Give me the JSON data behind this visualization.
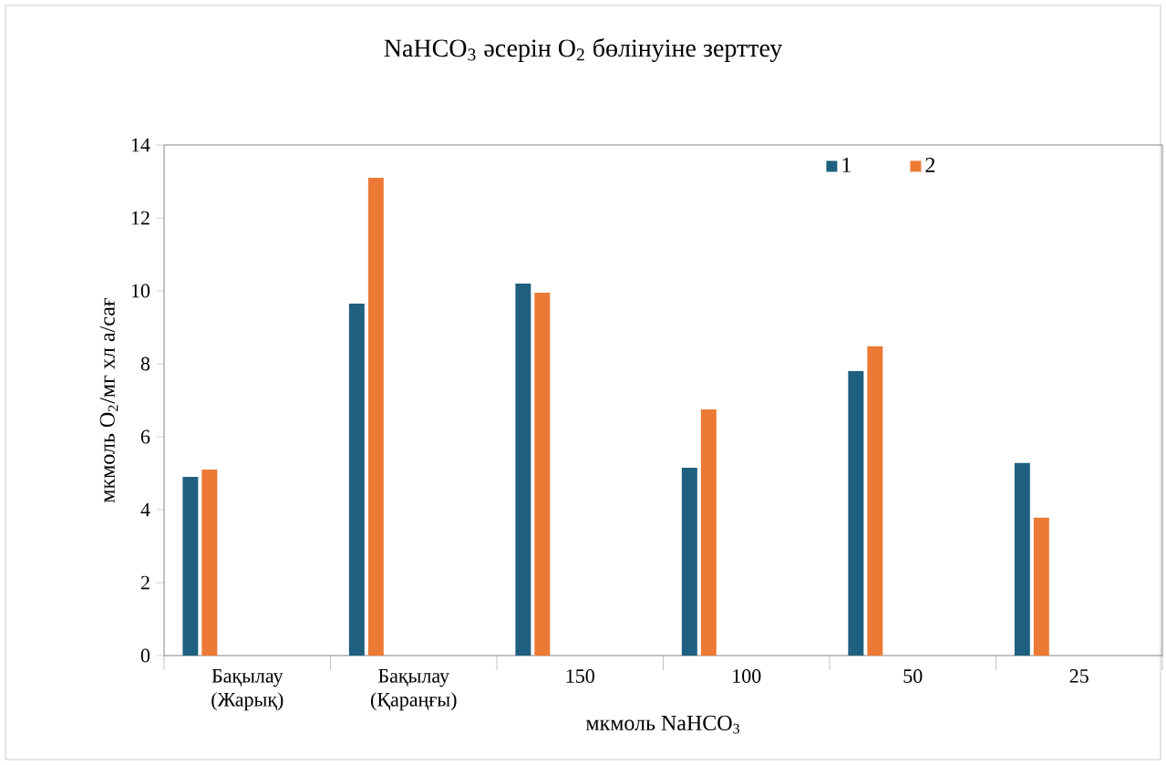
{
  "chart_data": {
    "type": "bar",
    "title": "NaHCO$_{3}$ әсерін O$_{2}$ бөлінуіне зерттеу",
    "xlabel": "мкмоль NaHCO$_{3}$",
    "ylabel": "мкмоль O$_{2}$/мг хл а/сағ",
    "categories": [
      "Бақылау (Жарық)",
      "Бақылау (Қараңғы)",
      "150",
      "100",
      "50",
      "25"
    ],
    "series": [
      {
        "name": "1",
        "color": "#1f5f7f",
        "values": [
          4.9,
          9.65,
          10.2,
          5.15,
          7.8,
          5.28
        ]
      },
      {
        "name": "2",
        "color": "#ec7a35",
        "values": [
          5.1,
          13.1,
          9.95,
          6.75,
          8.48,
          3.78
        ]
      }
    ],
    "ylim": [
      0,
      14
    ],
    "yticks": [
      0,
      2,
      4,
      6,
      8,
      10,
      12,
      14
    ],
    "grid": false,
    "legend": "top right"
  }
}
